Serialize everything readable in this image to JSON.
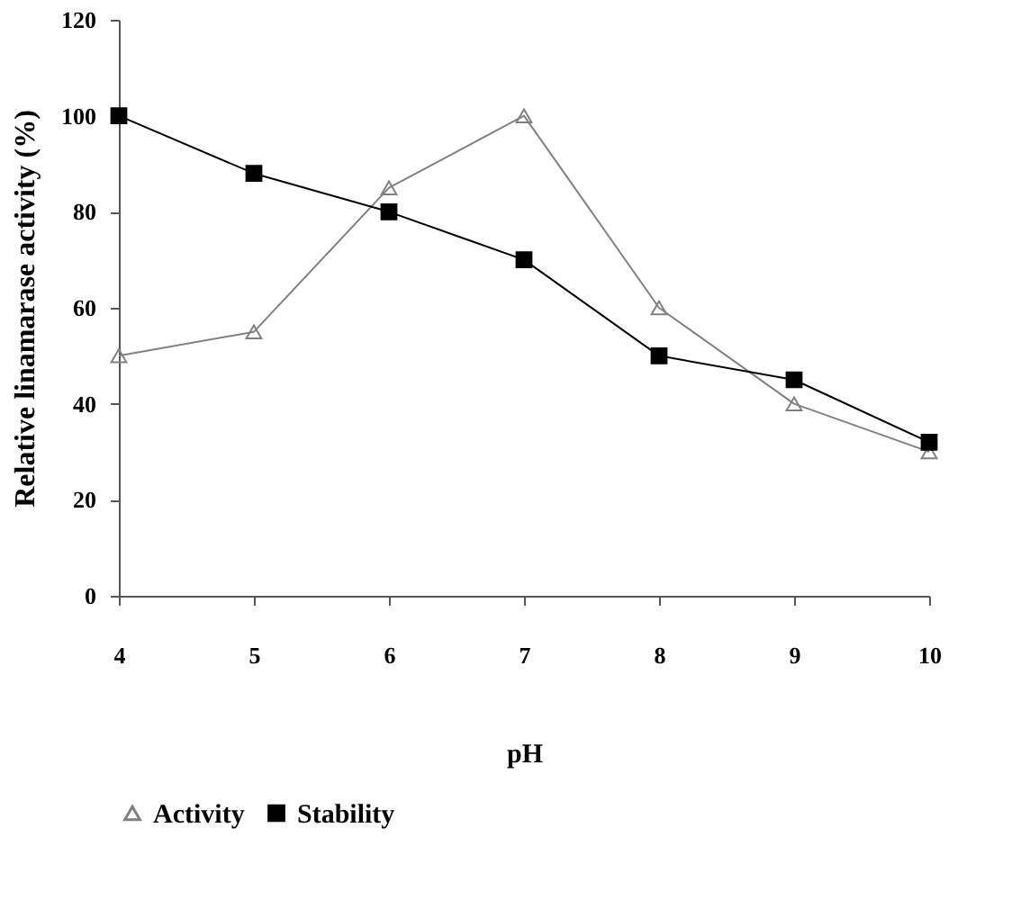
{
  "chart_data": {
    "type": "line",
    "xlabel": "pH",
    "ylabel": "Relative linamarase activity (%)",
    "x": [
      4,
      5,
      6,
      7,
      8,
      9,
      10
    ],
    "xlim": [
      4,
      10
    ],
    "xticks": [
      4,
      5,
      6,
      7,
      8,
      9,
      10
    ],
    "ylim": [
      0,
      120
    ],
    "yticks": [
      0,
      20,
      40,
      60,
      80,
      100,
      120
    ],
    "grid": false,
    "legend": "bottom",
    "line_style": "solid",
    "series": [
      {
        "name": "Activity",
        "color": "#808080",
        "marker": "triangle",
        "values": [
          50,
          55,
          85,
          100,
          60,
          40,
          30
        ]
      },
      {
        "name": "Stability",
        "color": "#000000",
        "marker": "square",
        "values": [
          100,
          88,
          80,
          70,
          50,
          45,
          32
        ]
      }
    ]
  }
}
